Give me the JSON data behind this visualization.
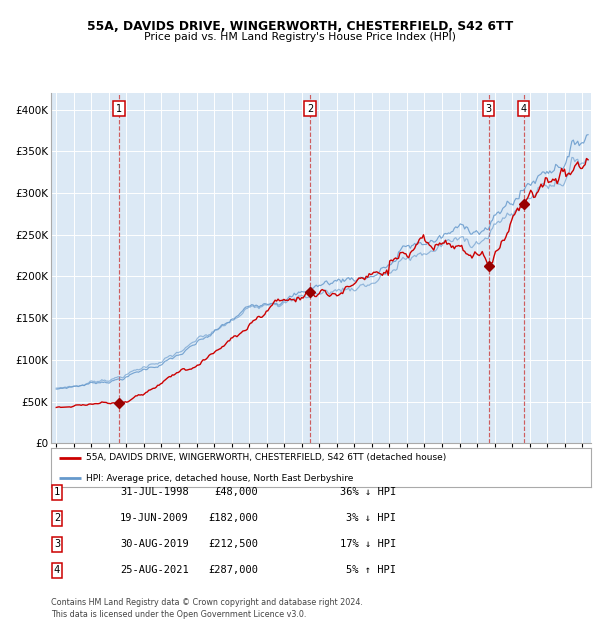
{
  "title": "55A, DAVIDS DRIVE, WINGERWORTH, CHESTERFIELD, S42 6TT",
  "subtitle": "Price paid vs. HM Land Registry's House Price Index (HPI)",
  "plot_bg_color": "#dce9f5",
  "ylim": [
    0,
    420000
  ],
  "yticks": [
    0,
    50000,
    100000,
    150000,
    200000,
    250000,
    300000,
    350000,
    400000
  ],
  "ytick_labels": [
    "£0",
    "£50K",
    "£100K",
    "£150K",
    "£200K",
    "£250K",
    "£300K",
    "£350K",
    "£400K"
  ],
  "xlim_start": 1994.7,
  "xlim_end": 2025.5,
  "sale_dates": [
    1998.58,
    2009.47,
    2019.66,
    2021.65
  ],
  "sale_prices": [
    48000,
    182000,
    212500,
    287000
  ],
  "sale_labels": [
    "1",
    "2",
    "3",
    "4"
  ],
  "legend_line1": "55A, DAVIDS DRIVE, WINGERWORTH, CHESTERFIELD, S42 6TT (detached house)",
  "legend_line2": "HPI: Average price, detached house, North East Derbyshire",
  "table_rows": [
    [
      "1",
      "31-JUL-1998",
      "£48,000",
      "36% ↓ HPI"
    ],
    [
      "2",
      "19-JUN-2009",
      "£182,000",
      "3% ↓ HPI"
    ],
    [
      "3",
      "30-AUG-2019",
      "£212,500",
      "17% ↓ HPI"
    ],
    [
      "4",
      "25-AUG-2021",
      "£287,000",
      "5% ↑ HPI"
    ]
  ],
  "footer": "Contains HM Land Registry data © Crown copyright and database right 2024.\nThis data is licensed under the Open Government Licence v3.0.",
  "red_line_color": "#cc0000",
  "blue_line_color": "#6699cc",
  "marker_color": "#990000",
  "vline_color": "#cc4444",
  "box_edge_color": "#cc0000",
  "grid_color": "#ffffff",
  "x_years": [
    1995,
    1996,
    1997,
    1998,
    1999,
    2000,
    2001,
    2002,
    2003,
    2004,
    2005,
    2006,
    2007,
    2008,
    2009,
    2010,
    2011,
    2012,
    2013,
    2014,
    2015,
    2016,
    2017,
    2018,
    2019,
    2020,
    2021,
    2022,
    2023,
    2024,
    2025
  ]
}
